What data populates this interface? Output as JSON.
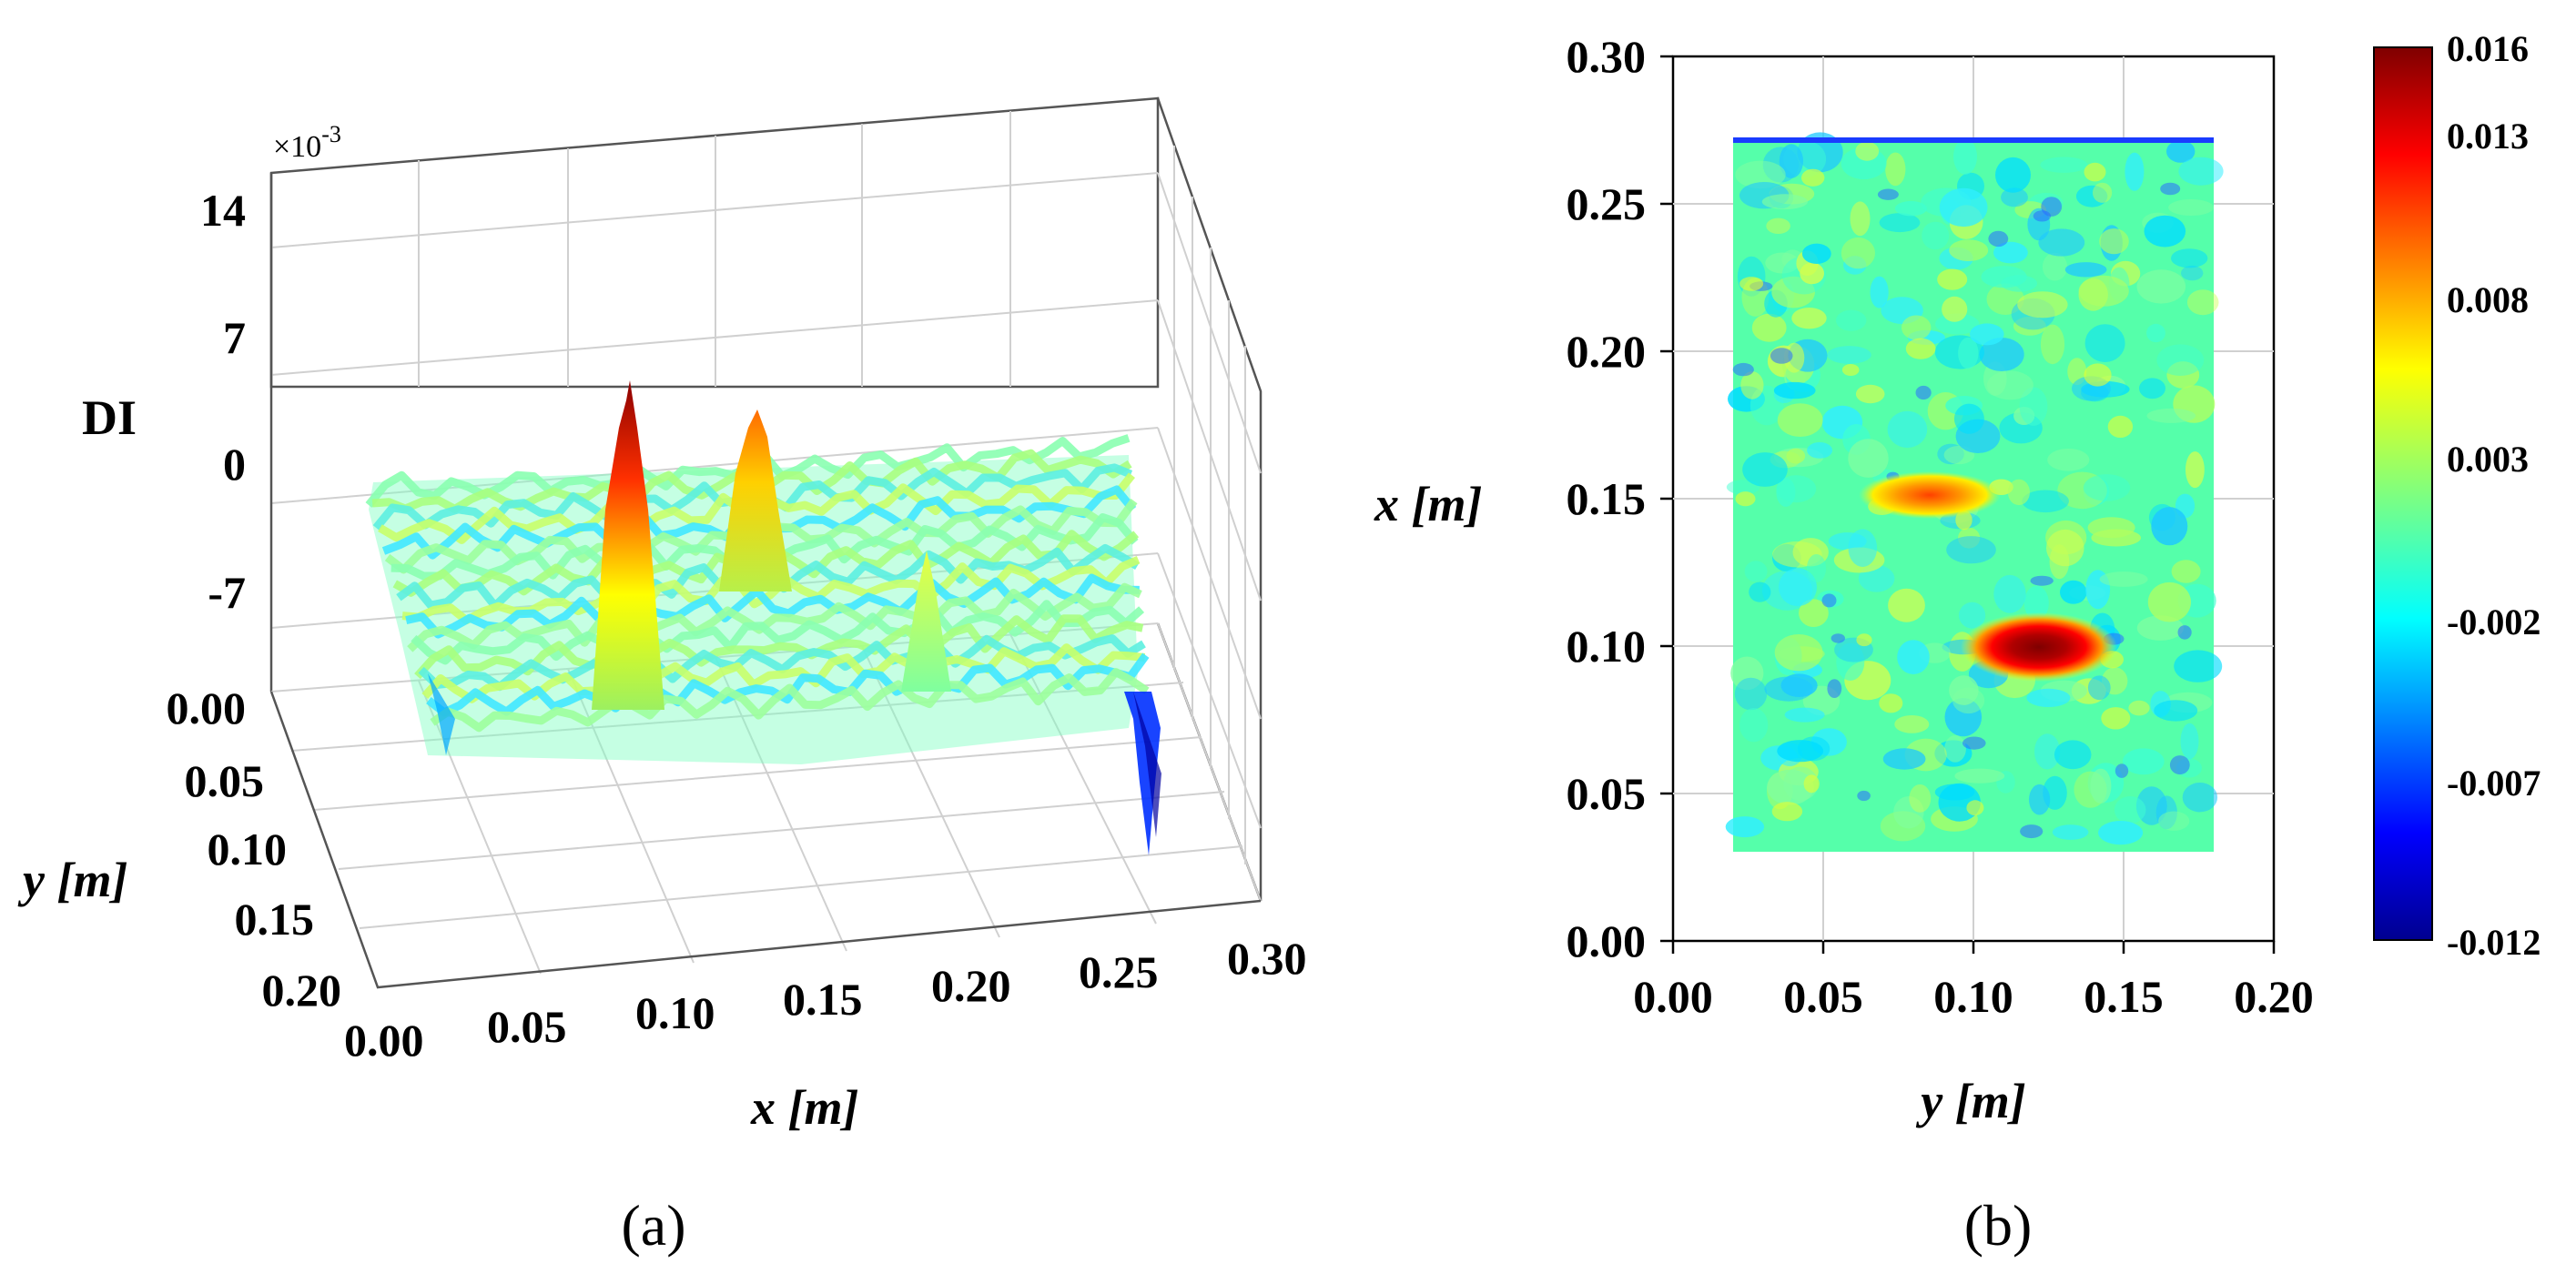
{
  "chart_data": [
    {
      "panel": "(a)",
      "type": "surface3d",
      "zlabel": "DI",
      "xlabel": "x [m]",
      "ylabel": "y [m]",
      "z_exponent": "×10",
      "z_exponent_power": "-3",
      "z_ticks": [
        "14",
        "7",
        "0",
        "-7"
      ],
      "z_range": [
        -12,
        16
      ],
      "x_ticks": [
        "0.00",
        "0.05",
        "0.10",
        "0.15",
        "0.20",
        "0.25",
        "0.30"
      ],
      "y_ticks": [
        "0.00",
        "0.05",
        "0.10",
        "0.15",
        "0.20"
      ],
      "xlim": [
        0.0,
        0.3
      ],
      "ylim": [
        0.0,
        0.2
      ],
      "damage_peaks": [
        {
          "x": 0.1,
          "y": 0.12,
          "value": 16
        },
        {
          "x": 0.15,
          "y": 0.075,
          "value": 11
        }
      ]
    },
    {
      "panel": "(b)",
      "type": "heatmap",
      "xlabel": "y [m]",
      "ylabel": "x [m]",
      "x_ticks": [
        "0.00",
        "0.05",
        "0.10",
        "0.15",
        "0.20"
      ],
      "y_ticks": [
        "0.00",
        "0.05",
        "0.10",
        "0.15",
        "0.20",
        "0.25",
        "0.30"
      ],
      "xlim": [
        0.0,
        0.2
      ],
      "ylim": [
        0.0,
        0.3
      ],
      "data_extent": {
        "y_min": 0.02,
        "y_max": 0.18,
        "x_min": 0.03,
        "x_max": 0.27
      },
      "colorbar_labels": [
        "0.016",
        "0.013",
        "0.008",
        "0.003",
        "-0.002",
        "-0.007",
        "-0.012"
      ],
      "colorbar_range": [
        -0.012,
        0.016
      ],
      "hotspots": [
        {
          "y": 0.125,
          "x": 0.1,
          "value": 0.016
        },
        {
          "y": 0.085,
          "x": 0.15,
          "value": 0.011
        }
      ]
    }
  ],
  "colors": {
    "low": "#00008f",
    "mid": "#7fff7f",
    "high": "#7f0000"
  }
}
